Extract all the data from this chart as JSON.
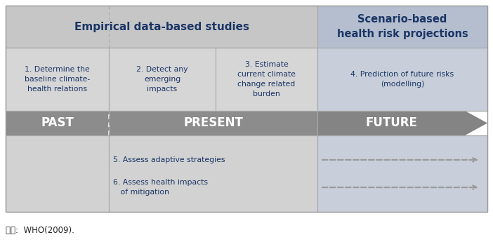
{
  "fig_width": 7.02,
  "fig_height": 3.45,
  "dpi": 100,
  "bg_color": "#ffffff",
  "header_left_bg": "#c6c6c6",
  "header_right_bg": "#b5bece",
  "cell_bg": "#d6d6d6",
  "cell_right_bg": "#c8cfda",
  "bottom_left_bg": "#d2d2d2",
  "bottom_mid_bg": "#d2d2d2",
  "bottom_right_bg": "#c8cfda",
  "arrow_body_color": "#8c8c8c",
  "arrow_tip_color": "#7a7a7a",
  "dark_blue": "#1a3566",
  "dashed_color": "#999999",
  "caption_color": "#222222",
  "header1_text": "Empirical data-based studies",
  "header2_text": "Scenario-based\nhealth risk projections",
  "cell1_text": "1. Determine the\nbaseline climate-\nhealth relations",
  "cell2_text": "2. Detect any\nemerging\nimpacts",
  "cell3_text": "3. Estimate\ncurrent climate\nchange related\nburden",
  "cell4_text": "4. Prediction of future risks\n(modelling)",
  "past_text": "PAST",
  "present_text": "PRESENT",
  "future_text": "FUTURE",
  "item5_text": "5. Assess adaptive strategies",
  "item6_text": "6. Assess health impacts\n   of mitigation",
  "caption": "자료:  WHO(2009)."
}
